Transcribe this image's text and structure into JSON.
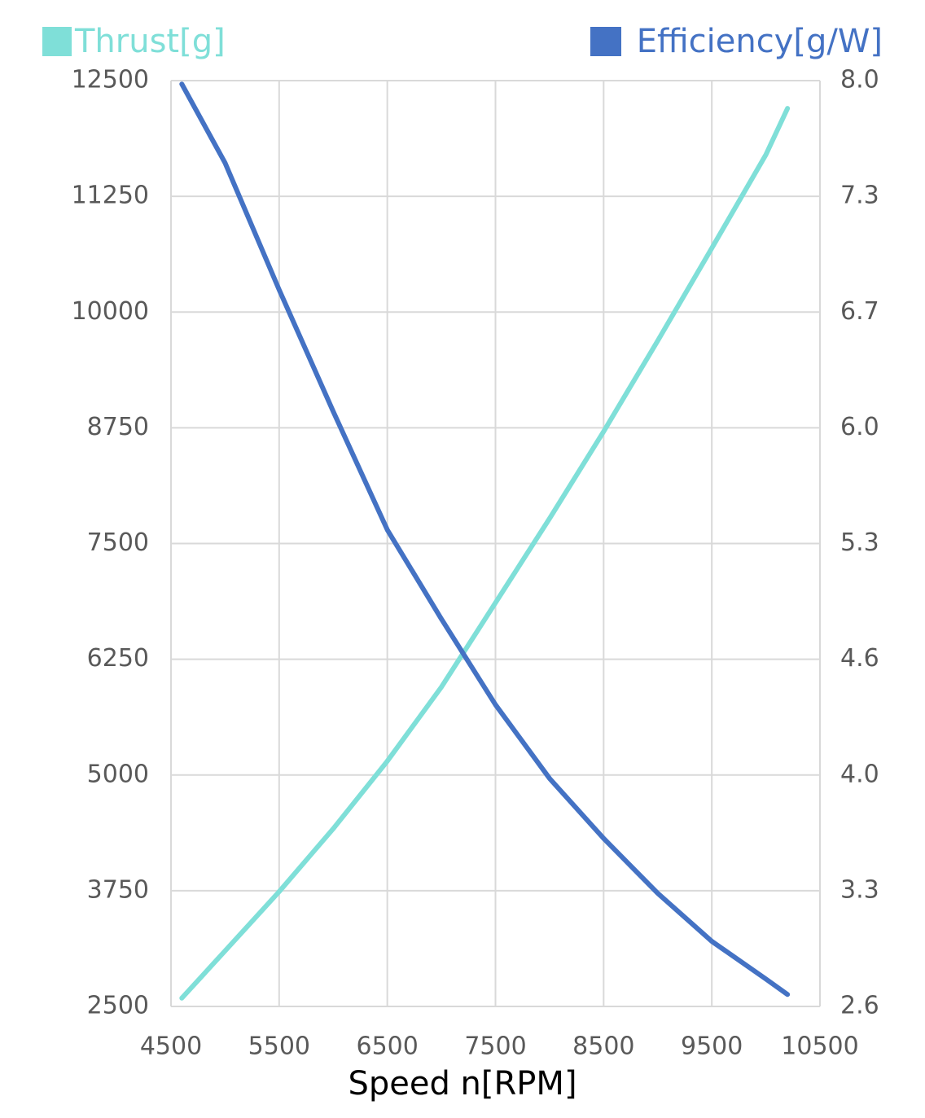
{
  "chart_data": {
    "type": "line",
    "x_label": "Speed n[RPM]",
    "x": [
      4600,
      5000,
      5500,
      6000,
      6500,
      7000,
      7500,
      8000,
      8500,
      9000,
      9500,
      10000,
      10200
    ],
    "series": [
      {
        "name": "Thrust[g]",
        "color": "#7fdfd8",
        "values": [
          2590,
          3100,
          3740,
          4420,
          5150,
          5950,
          6860,
          7770,
          8710,
          9690,
          10690,
          11700,
          12200
        ]
      },
      {
        "name": "Efficiency[g/W]",
        "color": "#4472c4",
        "axis": "y2",
        "values": [
          7.98,
          7.52,
          6.78,
          6.07,
          5.38,
          4.86,
          4.36,
          3.93,
          3.58,
          3.26,
          2.98,
          2.76,
          2.67
        ]
      }
    ],
    "xlim": [
      4500,
      10500
    ],
    "xticks": [
      4500,
      5500,
      6500,
      7500,
      8500,
      9500,
      10500
    ],
    "ylim": [
      2500,
      12500
    ],
    "yticks": [
      2500,
      3750,
      5000,
      6250,
      7500,
      8750,
      10000,
      11250,
      12500
    ],
    "y2lim": [
      2.6,
      8.0
    ],
    "y2ticks": [
      2.6,
      {
        "value": 3.275,
        "label": "3.3"
      },
      {
        "value": 3.95,
        "label": "4.0"
      },
      {
        "value": 4.625,
        "label": "4.6"
      },
      5.3,
      {
        "value": 5.975,
        "label": "6.0"
      },
      {
        "value": 6.65,
        "label": "6.7"
      },
      {
        "value": 7.325,
        "label": "7.3"
      },
      {
        "value": 8.0,
        "label": "8.0"
      }
    ],
    "grid": true
  }
}
